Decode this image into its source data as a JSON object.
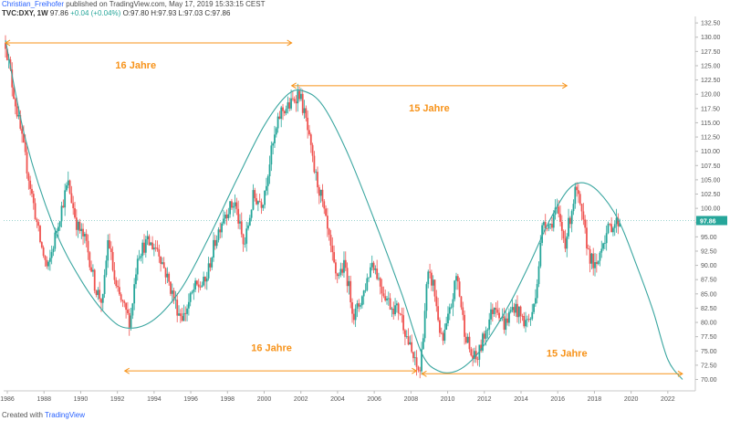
{
  "header": {
    "author": "Christian_Freihofer",
    "published": "published on TradingView.com, May 17, 2019 15:33:15 CEST",
    "symbol": "TVC:DXY, 1W",
    "last": "97.86",
    "change": "+0.04 (+0.04%)",
    "ohlc": "O:97.80 H:97.93 L:97.03 C:97.86"
  },
  "footer": {
    "created_with": "Created with",
    "brand": "TradingView"
  },
  "chart_data": {
    "type": "candlestick",
    "symbol": "TVC:DXY",
    "interval": "1W",
    "ylim": [
      68.0,
      133.0
    ],
    "xlim": [
      1985.8,
      2023.5
    ],
    "y_ticks": [
      70.0,
      72.5,
      75.0,
      77.5,
      80.0,
      82.5,
      85.0,
      87.5,
      90.0,
      92.5,
      95.0,
      97.5,
      100.0,
      102.5,
      105.0,
      107.5,
      110.0,
      112.5,
      115.0,
      117.5,
      120.0,
      122.5,
      125.0,
      127.5,
      130.0,
      132.5
    ],
    "x_ticks": [
      "1986",
      "1988",
      "1990",
      "1992",
      "1994",
      "1996",
      "1998",
      "2000",
      "2002",
      "2004",
      "2006",
      "2008",
      "2010",
      "2012",
      "2014",
      "2016",
      "2018",
      "2020",
      "2022"
    ],
    "last_price": 97.86,
    "price_path": [
      [
        1985.9,
        129.0
      ],
      [
        1986.3,
        121.0
      ],
      [
        1986.8,
        112.0
      ],
      [
        1987.3,
        103.0
      ],
      [
        1987.8,
        94.0
      ],
      [
        1988.2,
        89.0
      ],
      [
        1988.8,
        98.0
      ],
      [
        1989.3,
        104.5
      ],
      [
        1989.8,
        97.0
      ],
      [
        1990.3,
        94.0
      ],
      [
        1990.8,
        86.0
      ],
      [
        1991.2,
        83.5
      ],
      [
        1991.5,
        95.0
      ],
      [
        1991.9,
        86.0
      ],
      [
        1992.3,
        83.0
      ],
      [
        1992.7,
        80.0
      ],
      [
        1993.1,
        92.0
      ],
      [
        1993.6,
        94.0
      ],
      [
        1994.2,
        93.0
      ],
      [
        1994.8,
        87.0
      ],
      [
        1995.3,
        82.0
      ],
      [
        1995.6,
        81.0
      ],
      [
        1996.2,
        86.0
      ],
      [
        1996.8,
        87.0
      ],
      [
        1997.3,
        94.0
      ],
      [
        1997.8,
        99.0
      ],
      [
        1998.4,
        101.0
      ],
      [
        1998.9,
        93.0
      ],
      [
        1999.4,
        102.0
      ],
      [
        1999.9,
        101.0
      ],
      [
        2000.4,
        110.0
      ],
      [
        2000.9,
        117.0
      ],
      [
        2001.4,
        118.0
      ],
      [
        2001.9,
        120.5
      ],
      [
        2002.3,
        115.0
      ],
      [
        2002.7,
        107.0
      ],
      [
        2003.1,
        102.0
      ],
      [
        2003.5,
        95.0
      ],
      [
        2003.9,
        88.0
      ],
      [
        2004.4,
        90.0
      ],
      [
        2004.9,
        81.0
      ],
      [
        2005.4,
        85.0
      ],
      [
        2005.9,
        91.0
      ],
      [
        2006.4,
        86.0
      ],
      [
        2006.9,
        83.0
      ],
      [
        2007.4,
        82.0
      ],
      [
        2007.9,
        76.0
      ],
      [
        2008.3,
        72.0
      ],
      [
        2008.5,
        71.5
      ],
      [
        2008.9,
        88.0
      ],
      [
        2009.2,
        87.0
      ],
      [
        2009.7,
        76.0
      ],
      [
        2010.2,
        83.0
      ],
      [
        2010.5,
        88.5
      ],
      [
        2010.9,
        79.0
      ],
      [
        2011.3,
        74.0
      ],
      [
        2011.6,
        73.5
      ],
      [
        2012.2,
        80.0
      ],
      [
        2012.6,
        83.5
      ],
      [
        2013.1,
        79.5
      ],
      [
        2013.6,
        83.0
      ],
      [
        2014.2,
        80.0
      ],
      [
        2014.6,
        81.0
      ],
      [
        2014.9,
        88.0
      ],
      [
        2015.2,
        98.0
      ],
      [
        2015.6,
        97.0
      ],
      [
        2015.9,
        100.0
      ],
      [
        2016.4,
        94.0
      ],
      [
        2016.9,
        102.0
      ],
      [
        2017.0,
        103.5
      ],
      [
        2017.4,
        97.0
      ],
      [
        2017.7,
        92.0
      ],
      [
        2018.1,
        89.0
      ],
      [
        2018.4,
        94.0
      ],
      [
        2018.9,
        97.0
      ],
      [
        2019.4,
        97.86
      ]
    ],
    "cycle_curve": [
      [
        1985.9,
        129.5
      ],
      [
        1987.0,
        112.0
      ],
      [
        1988.5,
        97.0
      ],
      [
        1990.0,
        87.5
      ],
      [
        1991.5,
        81.0
      ],
      [
        1992.6,
        79.0
      ],
      [
        1994.0,
        80.5
      ],
      [
        1995.5,
        86.0
      ],
      [
        1997.0,
        95.0
      ],
      [
        1998.5,
        105.0
      ],
      [
        2000.0,
        114.5
      ],
      [
        2001.3,
        120.0
      ],
      [
        2002.2,
        120.5
      ],
      [
        2003.2,
        118.0
      ],
      [
        2004.5,
        110.0
      ],
      [
        2006.0,
        98.0
      ],
      [
        2007.5,
        85.0
      ],
      [
        2008.6,
        74.5
      ],
      [
        2009.5,
        71.5
      ],
      [
        2010.5,
        71.5
      ],
      [
        2011.5,
        74.0
      ],
      [
        2012.5,
        78.5
      ],
      [
        2013.5,
        84.0
      ],
      [
        2014.5,
        90.5
      ],
      [
        2015.5,
        97.5
      ],
      [
        2016.5,
        103.0
      ],
      [
        2017.3,
        104.5
      ],
      [
        2018.2,
        103.0
      ],
      [
        2019.3,
        98.0
      ],
      [
        2020.3,
        90.0
      ],
      [
        2021.2,
        82.0
      ],
      [
        2022.0,
        73.5
      ],
      [
        2022.8,
        70.0
      ]
    ],
    "annotations": [
      {
        "label": "16 Jahre",
        "x1": 1985.9,
        "x2": 2001.5,
        "y": 129.0,
        "label_x": 1993.0,
        "label_y": 124.5
      },
      {
        "label": "15 Jahre",
        "x1": 2001.5,
        "x2": 2016.5,
        "y": 121.5,
        "label_x": 2009.0,
        "label_y": 117.0
      },
      {
        "label": "16 Jahre",
        "x1": 1992.4,
        "x2": 2008.3,
        "y": 71.5,
        "label_x": 2000.4,
        "label_y": 75.0
      },
      {
        "label": "15 Jahre",
        "x1": 2008.6,
        "x2": 2022.8,
        "y": 71.0,
        "label_x": 2016.5,
        "label_y": 74.0
      }
    ],
    "colors": {
      "up": "#26a69a",
      "down": "#ef5350",
      "curve": "#3aa6a0",
      "annotation": "#f7931a",
      "last_label_bg": "#26a69a",
      "last_line": "#9bd3cf"
    }
  }
}
